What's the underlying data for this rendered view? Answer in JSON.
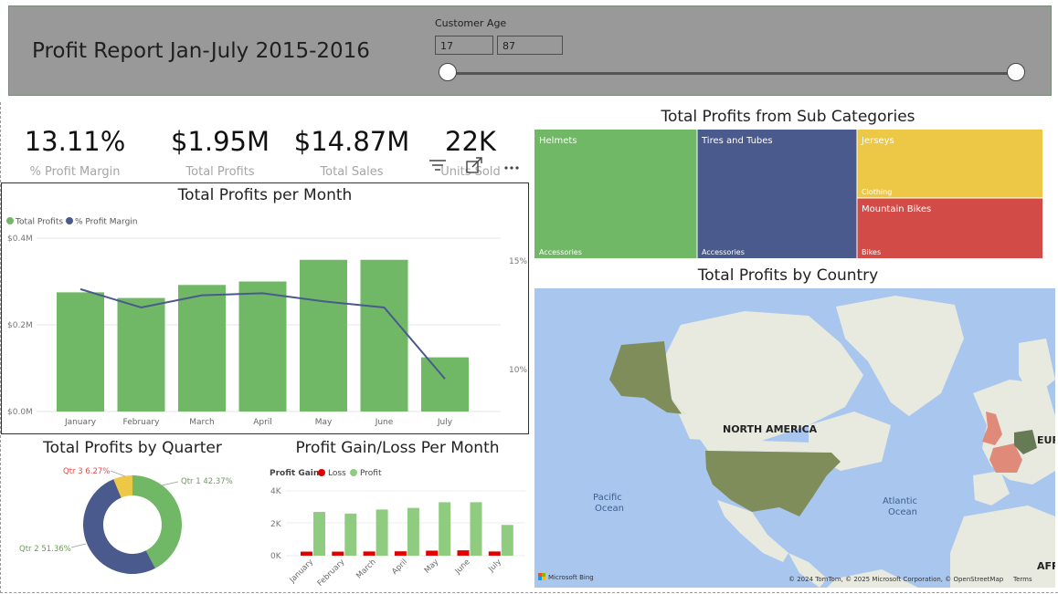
{
  "header": {
    "title": "Profit Report Jan-July 2015-2016",
    "slicer_label": "Customer Age",
    "age_min": "17",
    "age_max": "87"
  },
  "kpis": [
    {
      "value": "13.11%",
      "label": "% Profit Margin"
    },
    {
      "value": "$1.95M",
      "label": "Total Profits"
    },
    {
      "value": "$14.87M",
      "label": "Total Sales"
    },
    {
      "value": "22K",
      "label": "Units Sold"
    }
  ],
  "colors": {
    "green": "#70b865",
    "navy": "#4a5a8c",
    "yellow": "#ecc846",
    "red": "#d24b46",
    "loss": "#e00000",
    "profit_light": "#8fcc80"
  },
  "chart_data": [
    {
      "type": "bar",
      "title": "Total Profits per Month",
      "categories": [
        "January",
        "February",
        "March",
        "April",
        "May",
        "June",
        "July"
      ],
      "series": [
        {
          "name": "Total Profits",
          "values": [
            0.275,
            0.262,
            0.292,
            0.3,
            0.35,
            0.35,
            0.125
          ]
        },
        {
          "name": "% Profit Margin",
          "values": [
            14.0,
            13.1,
            13.7,
            13.8,
            13.4,
            13.1,
            9.6
          ],
          "axis": "right",
          "type": "line"
        }
      ],
      "y_ticks": [
        "$0.4M",
        "$0.2M",
        "$0.0M"
      ],
      "y2_ticks": [
        "15%",
        "10%"
      ],
      "ylim": [
        0,
        0.4
      ],
      "y2lim": [
        8,
        16.5
      ],
      "legend": "top-left"
    },
    {
      "type": "pie",
      "title": "Total Profits by Quarter",
      "series": [
        {
          "name": "Qtr 1",
          "value": 42.37,
          "label": "Qtr 1 42.37%"
        },
        {
          "name": "Qtr 2",
          "value": 51.36,
          "label": "Qtr 2 51.36%"
        },
        {
          "name": "Qtr 3",
          "value": 6.27,
          "label": "Qtr 3 6.27%"
        }
      ]
    },
    {
      "type": "bar",
      "title": "Profit Gain/Loss Per Month",
      "legend_title": "Profit Gain",
      "categories": [
        "January",
        "February",
        "March",
        "April",
        "May",
        "June",
        "July"
      ],
      "series": [
        {
          "name": "Loss",
          "values": [
            250,
            250,
            260,
            270,
            310,
            330,
            260
          ]
        },
        {
          "name": "Profit",
          "values": [
            2700,
            2600,
            2850,
            2950,
            3300,
            3300,
            1900
          ]
        }
      ],
      "y_ticks": [
        "4K",
        "2K",
        "0K"
      ],
      "ylim": [
        0,
        4000
      ]
    },
    {
      "type": "treemap",
      "title": "Total Profits from Sub Categories",
      "items": [
        {
          "name": "Helmets",
          "group": "Accessories"
        },
        {
          "name": "Tires and Tubes",
          "group": "Accessories"
        },
        {
          "name": "Jerseys",
          "group": "Clothing"
        },
        {
          "name": "Mountain Bikes",
          "group": "Bikes"
        }
      ]
    }
  ],
  "map": {
    "title": "Total Profits by Country",
    "labels": {
      "north_america": "NORTH AMERICA",
      "pacific_1": "Pacific",
      "pacific_2": "Ocean",
      "atlantic_1": "Atlantic",
      "atlantic_2": "Ocean",
      "europe": "EUR",
      "africa": "AFR"
    },
    "brand": "Microsoft Bing",
    "attribution": "© 2024 TomTom, © 2025 Microsoft Corporation, © OpenStreetMap",
    "terms": "Terms"
  }
}
